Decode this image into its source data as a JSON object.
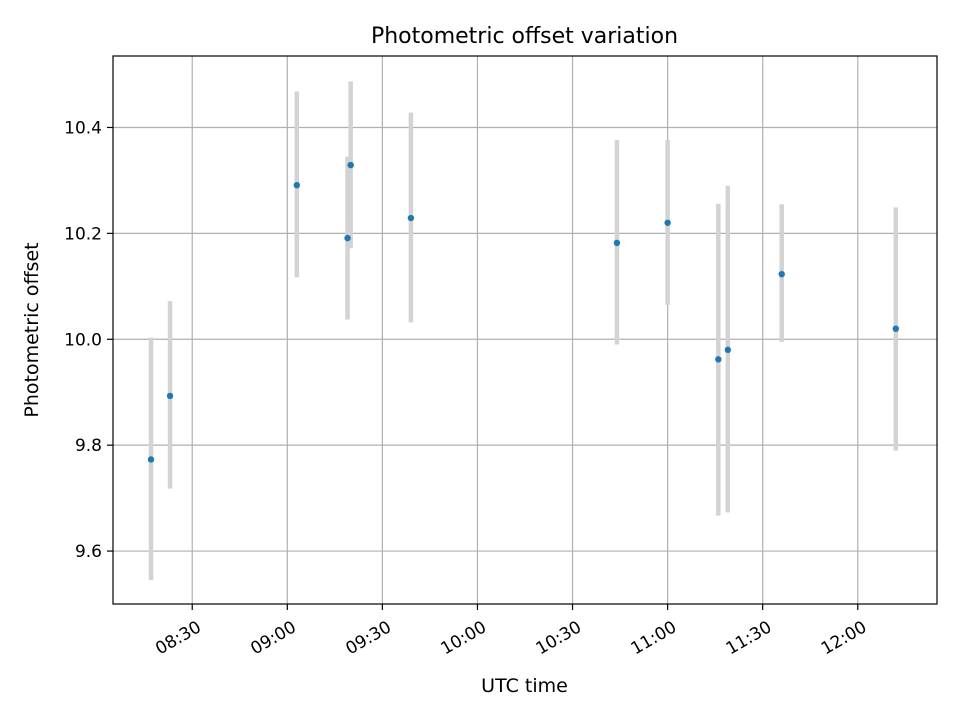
{
  "chart_data": {
    "type": "scatter",
    "title": "Photometric offset variation",
    "xlabel": "UTC time",
    "ylabel": "Photometric offset",
    "xlim": [
      "08:05",
      "12:25"
    ],
    "ylim": [
      9.5,
      10.535
    ],
    "x_ticks": [
      "08:30",
      "09:00",
      "09:30",
      "10:00",
      "10:30",
      "11:00",
      "11:30",
      "12:00"
    ],
    "y_ticks": [
      9.6,
      9.8,
      10.0,
      10.2,
      10.4
    ],
    "grid": true,
    "point_color": "#1f77b4",
    "errorbar_color": "#d3d3d3",
    "series": [
      {
        "points": [
          {
            "time": "08:17",
            "y": 9.773,
            "y_low": 9.545,
            "y_high": 10.003
          },
          {
            "time": "08:23",
            "y": 9.893,
            "y_low": 9.718,
            "y_high": 10.072
          },
          {
            "time": "09:03",
            "y": 10.291,
            "y_low": 10.117,
            "y_high": 10.468
          },
          {
            "time": "09:19",
            "y": 10.191,
            "y_low": 10.037,
            "y_high": 10.345
          },
          {
            "time": "09:20",
            "y": 10.329,
            "y_low": 10.172,
            "y_high": 10.487
          },
          {
            "time": "09:39",
            "y": 10.229,
            "y_low": 10.032,
            "y_high": 10.428
          },
          {
            "time": "10:44",
            "y": 10.182,
            "y_low": 9.99,
            "y_high": 10.376
          },
          {
            "time": "11:00",
            "y": 10.22,
            "y_low": 10.065,
            "y_high": 10.376
          },
          {
            "time": "11:16",
            "y": 9.962,
            "y_low": 9.667,
            "y_high": 10.256
          },
          {
            "time": "11:19",
            "y": 9.98,
            "y_low": 9.673,
            "y_high": 10.29
          },
          {
            "time": "11:36",
            "y": 10.123,
            "y_low": 9.995,
            "y_high": 10.255
          },
          {
            "time": "12:12",
            "y": 10.02,
            "y_low": 9.79,
            "y_high": 10.249
          }
        ]
      }
    ]
  }
}
